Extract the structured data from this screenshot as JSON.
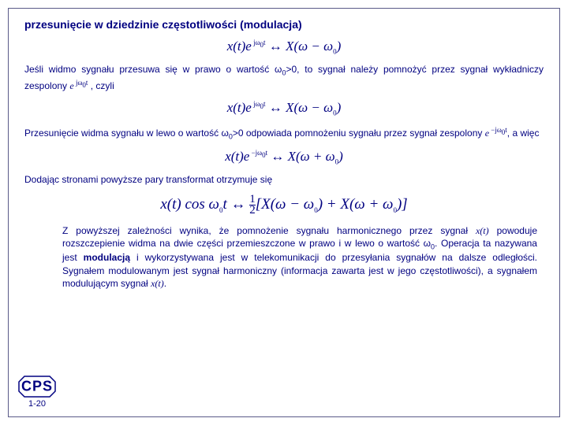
{
  "title": "przesunięcie w dziedzinie częstotliwości (modulacja)",
  "formula1": "x(t)e<sup class='sup'> jω<sub class='sub'>0</sub>t</sup> ↔ X(ω − ω<sub class='sub'>0</sub>)",
  "para1a": "Jeśli widmo sygnału przesuwa się w prawo o wartość ω",
  "para1b": ">0, to sygnał należy pomnożyć przez sygnał wykładniczy zespolony ",
  "para1c": " , czyli",
  "inline_exp1": "e<sup class='sup'> jω<sub class='sub'>0</sub>t</sup>",
  "formula2": "x(t)e<sup class='sup'> jω<sub class='sub'>0</sub>t</sup> ↔ X(ω − ω<sub class='sub'>0</sub>)",
  "para2a": "Przesunięcie widma sygnału w lewo o wartość ω",
  "para2b": ">0 odpowiada pomnożeniu sygnału przez sygnał zespolony ",
  "para2c": ", a więc",
  "inline_exp2": "e<sup class='sup'> −jω<sub class='sub'>0</sub>t</sup>",
  "formula3": "x(t)e<sup class='sup'> −jω<sub class='sub'>0</sub>t</sup> ↔ X(ω + ω<sub class='sub'>0</sub>)",
  "para3": "Dodając stronami powyższe pary transformat otrzymuje się",
  "formula4_left": "x(t) cos ω<sub class='sub'>0</sub>t ↔ ",
  "formula4_right": "[X(ω − ω<sub class='sub'>0</sub>) + X(ω + ω<sub class='sub'>0</sub>)]",
  "para4a": "Z powyższej zależności wynika, że pomnożenie sygnału harmonicznego przez sygnał ",
  "xt": "x(t)",
  "para4b": " powoduje rozszczepienie widma na dwie części przemieszczone w prawo i w lewo o wartość ω",
  "para4c": ". Operacja ta nazywana jest ",
  "mod": "modulacją",
  "para4d": " i wykorzystywana jest w telekomunikacji do przesyłania sygnałów na dalsze odległości. Sygnałem modulowanym jest sygnał harmoniczny (informacja zawarta jest w jego częstotliwości), a sygnałem modulującym sygnał ",
  "para4e": ".",
  "cps": "CPS",
  "pagenum": "1-20",
  "omega0": "0"
}
